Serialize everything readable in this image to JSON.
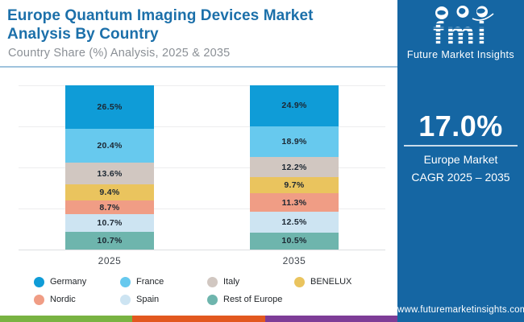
{
  "header": {
    "title": "Europe Quantum Imaging Devices Market Analysis By Country",
    "subtitle": "Country Share (%) Analysis, 2025 & 2035"
  },
  "chart_data": {
    "type": "bar",
    "stacked": true,
    "categories": [
      "2025",
      "2035"
    ],
    "series": [
      {
        "name": "Germany",
        "color": "#0f9cd7",
        "values": [
          26.5,
          24.9
        ]
      },
      {
        "name": "France",
        "color": "#67c9ee",
        "values": [
          20.4,
          18.9
        ]
      },
      {
        "name": "Italy",
        "color": "#d1c7c1",
        "values": [
          13.6,
          12.2
        ]
      },
      {
        "name": "BENELUX",
        "color": "#eac45e",
        "values": [
          9.4,
          9.7
        ]
      },
      {
        "name": "Nordic",
        "color": "#f09d85",
        "values": [
          8.7,
          11.3
        ]
      },
      {
        "name": "Spain",
        "color": "#cde4f2",
        "values": [
          10.7,
          12.5
        ]
      },
      {
        "name": "Rest of Europe",
        "color": "#6eb5ad",
        "values": [
          10.7,
          10.5
        ]
      }
    ],
    "value_suffix": "%",
    "ylim": [
      0,
      100
    ],
    "grid": true,
    "gridline_interval_pct": 25,
    "legend_position": "bottom",
    "label_color": "#1c2732"
  },
  "sidebar": {
    "background_color": "#1566a3",
    "logo_text": "fmi",
    "logo_caption": "Future Market Insights",
    "logo_icons": [
      "usa-map-icon",
      "world-map-icon",
      "globe-icon"
    ],
    "cagr_value": "17.0%",
    "cagr_line1": "Europe Market",
    "cagr_line2": "CAGR 2025 – 2035",
    "website": "www.futuremarketinsights.com"
  },
  "footer": {
    "stripe_colors": [
      "#79b342",
      "#e2581f",
      "#7e3d97"
    ]
  }
}
